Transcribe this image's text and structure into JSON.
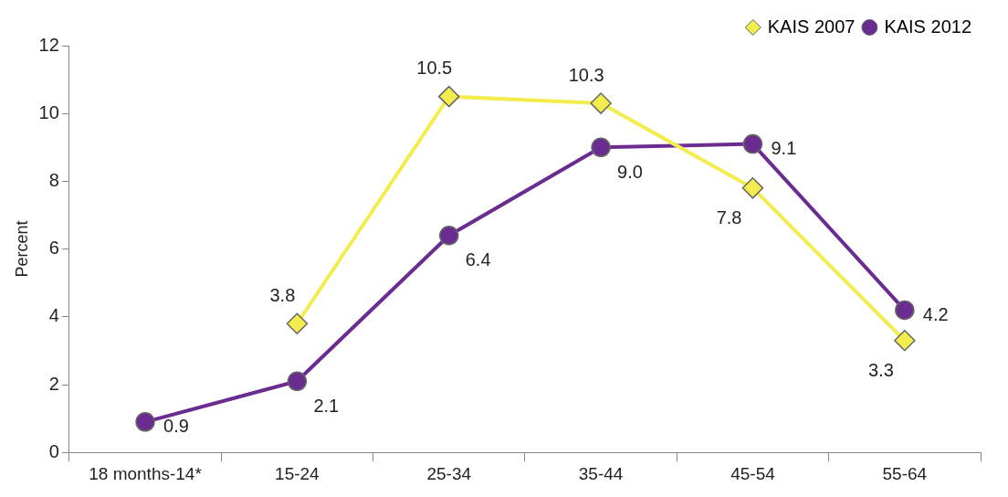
{
  "chart_data": {
    "type": "line",
    "ylabel": "Percent",
    "categories": [
      "18 months-14*",
      "15-24",
      "25-34",
      "35-44",
      "45-54",
      "55-64"
    ],
    "series": [
      {
        "name": "KAIS 2007",
        "color": "#f2ec4e",
        "marker": "diamond",
        "values": [
          null,
          3.8,
          10.5,
          10.3,
          7.8,
          3.3
        ],
        "value_labels": [
          null,
          "3.8",
          "10.5",
          "10.3",
          "7.8",
          "3.3"
        ]
      },
      {
        "name": "KAIS 2012",
        "color": "#6a2c91",
        "marker": "circle",
        "values": [
          0.9,
          2.1,
          6.4,
          9.0,
          9.1,
          4.2
        ],
        "value_labels": [
          "0.9",
          "2.1",
          "6.4",
          "9.0",
          "9.1",
          "4.2"
        ]
      }
    ],
    "ylim": [
      0,
      12
    ],
    "yticks": [
      0,
      2,
      4,
      6,
      8,
      10,
      12
    ],
    "legend": "top right",
    "grid": false
  }
}
